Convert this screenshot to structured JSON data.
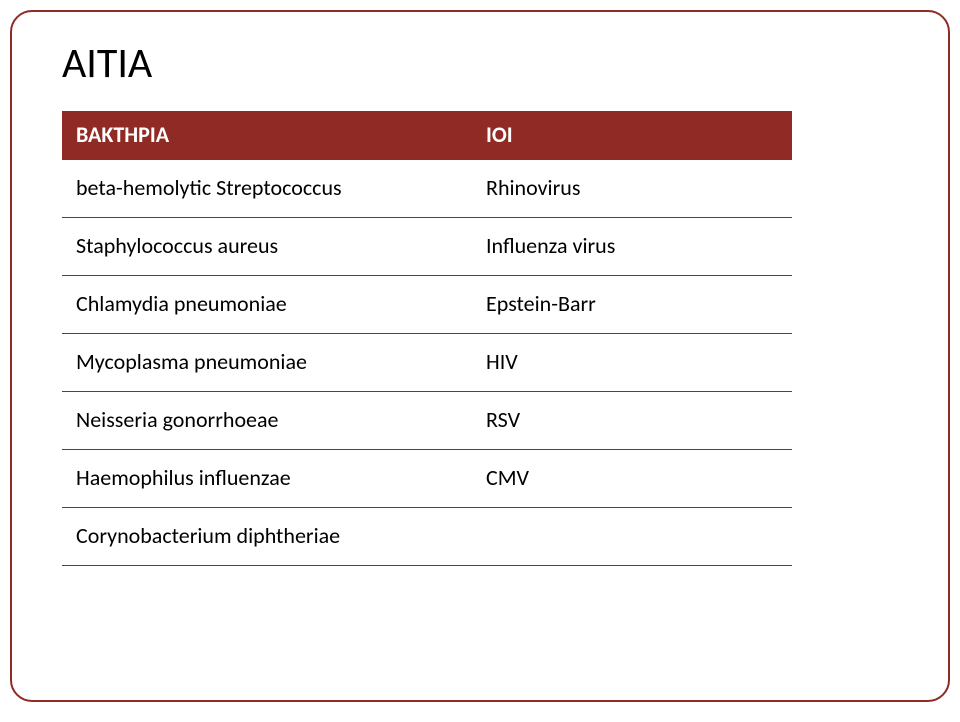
{
  "title": "ΑΙΤΙΑ",
  "table": {
    "header_bg": "#8f2b24",
    "header_fg": "#ffffff",
    "row_border": "#8f2b24",
    "columns": [
      "ΒΑΚΤΗΡΙΑ",
      "ΙΟΙ"
    ],
    "rows": [
      [
        "beta-hemolytic Streptococcus",
        "Rhinovirus"
      ],
      [
        "Staphylococcus aureus",
        "Influenza virus"
      ],
      [
        "Chlamydia pneumoniae",
        "Epstein-Barr"
      ],
      [
        "Mycoplasma pneumoniae",
        "HIV"
      ],
      [
        "Neisseria gonorrhoeae",
        "RSV"
      ],
      [
        "Haemophilus influenzae",
        "CMV"
      ],
      [
        "Corynobacterium diphtheriae",
        ""
      ]
    ]
  }
}
